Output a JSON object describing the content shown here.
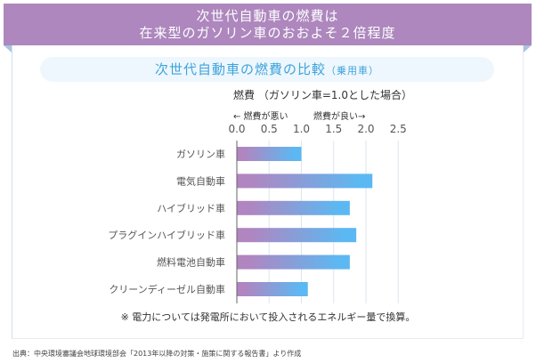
{
  "header": {
    "line1": "次世代自動車の燃費は",
    "line2": "在来型のガソリン車のおおよそ２倍程度"
  },
  "subtitle": {
    "main": "次世代自動車の燃費の比較",
    "sub": "（乗用車）"
  },
  "chart_data": {
    "type": "bar",
    "orientation": "horizontal",
    "title": "燃費 （ガソリン車=1.0とした場合）",
    "direction_left": "← 燃費が悪い",
    "direction_right": "燃費が良い→",
    "categories": [
      "ガソリン車",
      "電気自動車",
      "ハイブリッド車",
      "プラグインハイブリッド車",
      "燃料電池自動車",
      "クリーンディーゼル自動車"
    ],
    "values": [
      1.0,
      2.1,
      1.75,
      1.85,
      1.75,
      1.1
    ],
    "xlim": [
      0,
      2.5
    ],
    "xticks": [
      "0.0",
      "0.5",
      "1.0",
      "1.5",
      "2.0",
      "2.5"
    ],
    "grid": true,
    "colors": {
      "gradient_start": "#b185c0",
      "gradient_end": "#5cb8f2",
      "grid": "#dde6ee"
    }
  },
  "note": "※ 電力については発電所において投入されるエネルギー量で換算。",
  "source": "出典：中央環境審議会地球環境部会「2013年以降の対策・施策に関する報告書」より作成"
}
